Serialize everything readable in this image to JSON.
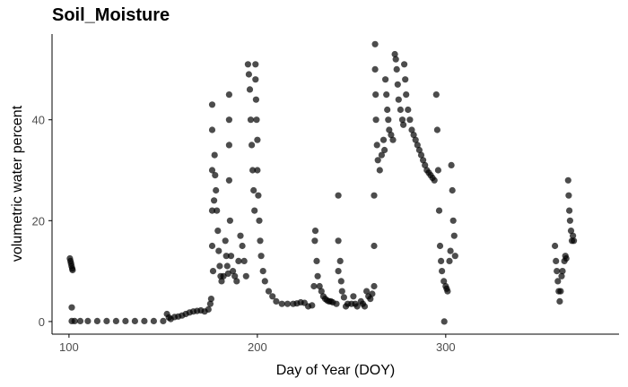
{
  "chart_data": {
    "type": "scatter",
    "title": "Soil_Moisture",
    "xlabel": "Day of Year (DOY)",
    "ylabel": "volumetric water percent",
    "xlim": [
      91,
      392
    ],
    "ylim": [
      -2.5,
      57
    ],
    "xticks": [
      100,
      200,
      300
    ],
    "yticks": [
      0,
      20,
      40
    ],
    "grid": false,
    "point_color": "#000000",
    "point_opacity": 0.7,
    "series": [
      {
        "points": [
          [
            100.5,
            12.5
          ],
          [
            100.8,
            12.0
          ],
          [
            101.1,
            11.5
          ],
          [
            101.4,
            11.0
          ],
          [
            101.7,
            10.5
          ],
          [
            101.9,
            10.2
          ],
          [
            101.5,
            2.8
          ],
          [
            101.5,
            0.1
          ],
          [
            103,
            0.1
          ],
          [
            106,
            0.1
          ],
          [
            110,
            0.1
          ],
          [
            115,
            0.1
          ],
          [
            120,
            0.1
          ],
          [
            125,
            0.1
          ],
          [
            130,
            0.1
          ],
          [
            135,
            0.1
          ],
          [
            140,
            0.1
          ],
          [
            145,
            0.1
          ],
          [
            150,
            0.1
          ],
          [
            152,
            1.5
          ],
          [
            153,
            0.8
          ],
          [
            154,
            0.5
          ],
          [
            156,
            0.9
          ],
          [
            158,
            1.0
          ],
          [
            160,
            1.2
          ],
          [
            162,
            1.5
          ],
          [
            164,
            1.8
          ],
          [
            166,
            2.0
          ],
          [
            168,
            2.1
          ],
          [
            170,
            2.2
          ],
          [
            172,
            2.0
          ],
          [
            174,
            2.4
          ],
          [
            175,
            3.5
          ],
          [
            175.5,
            4.5
          ],
          [
            176,
            43
          ],
          [
            176,
            38
          ],
          [
            176,
            30
          ],
          [
            176,
            22
          ],
          [
            176,
            15
          ],
          [
            176.5,
            10
          ],
          [
            177,
            24
          ],
          [
            177.3,
            33
          ],
          [
            177.6,
            29
          ],
          [
            178,
            26
          ],
          [
            178.5,
            22
          ],
          [
            179,
            18
          ],
          [
            179.5,
            14
          ],
          [
            180,
            11
          ],
          [
            180.5,
            9
          ],
          [
            181,
            8
          ],
          [
            182,
            9
          ],
          [
            183,
            16
          ],
          [
            183.5,
            13
          ],
          [
            184,
            11
          ],
          [
            184.5,
            9.5
          ],
          [
            185,
            45
          ],
          [
            185,
            40
          ],
          [
            185,
            35
          ],
          [
            185,
            28
          ],
          [
            185.5,
            20
          ],
          [
            186,
            13
          ],
          [
            187,
            10
          ],
          [
            188,
            9
          ],
          [
            189,
            8
          ],
          [
            190,
            12
          ],
          [
            191,
            17
          ],
          [
            192,
            15
          ],
          [
            193,
            12
          ],
          [
            194,
            9
          ],
          [
            195,
            51
          ],
          [
            195.5,
            49
          ],
          [
            196,
            46
          ],
          [
            196.5,
            40
          ],
          [
            197,
            35
          ],
          [
            197.5,
            30
          ],
          [
            198,
            26
          ],
          [
            198.5,
            22
          ],
          [
            199,
            51
          ],
          [
            199,
            48
          ],
          [
            199.3,
            44
          ],
          [
            199.6,
            40
          ],
          [
            200,
            36
          ],
          [
            200,
            30
          ],
          [
            200.5,
            25
          ],
          [
            201,
            20
          ],
          [
            201.5,
            16
          ],
          [
            202,
            13
          ],
          [
            203,
            10
          ],
          [
            204,
            8
          ],
          [
            206,
            6
          ],
          [
            208,
            5
          ],
          [
            210,
            4
          ],
          [
            213,
            3.5
          ],
          [
            216,
            3.5
          ],
          [
            219,
            3.5
          ],
          [
            221,
            3.6
          ],
          [
            223,
            3.8
          ],
          [
            225,
            3.7
          ],
          [
            227,
            3.0
          ],
          [
            229,
            3.2
          ],
          [
            230,
            7
          ],
          [
            230.5,
            16
          ],
          [
            230.8,
            18
          ],
          [
            231.5,
            12
          ],
          [
            232,
            9
          ],
          [
            233,
            7
          ],
          [
            234,
            6
          ],
          [
            235,
            5
          ],
          [
            236,
            4.5
          ],
          [
            237,
            4.2
          ],
          [
            238,
            4
          ],
          [
            239,
            4
          ],
          [
            240,
            3.8
          ],
          [
            242,
            3.5
          ],
          [
            243,
            25
          ],
          [
            243,
            16
          ],
          [
            243,
            10
          ],
          [
            244,
            12
          ],
          [
            244.5,
            8
          ],
          [
            245,
            6
          ],
          [
            246,
            4.8
          ],
          [
            247,
            3
          ],
          [
            248,
            3.5
          ],
          [
            250,
            3.5
          ],
          [
            251,
            5
          ],
          [
            252,
            3.5
          ],
          [
            253,
            3
          ],
          [
            255,
            4
          ],
          [
            256,
            3.5
          ],
          [
            257,
            3
          ],
          [
            258,
            6
          ],
          [
            259,
            5
          ],
          [
            260,
            4.5
          ],
          [
            261,
            5.5
          ],
          [
            262,
            7
          ],
          [
            262,
            15
          ],
          [
            262,
            25
          ],
          [
            262.5,
            55
          ],
          [
            262.5,
            50
          ],
          [
            262.8,
            45
          ],
          [
            263,
            40
          ],
          [
            263.5,
            35
          ],
          [
            264,
            32
          ],
          [
            265,
            30
          ],
          [
            266,
            33
          ],
          [
            267,
            36
          ],
          [
            267.5,
            34
          ],
          [
            268,
            48
          ],
          [
            268.5,
            45
          ],
          [
            269,
            42
          ],
          [
            269.5,
            40
          ],
          [
            270,
            38
          ],
          [
            271,
            37
          ],
          [
            272,
            36
          ],
          [
            273,
            53
          ],
          [
            273.5,
            52
          ],
          [
            274,
            50
          ],
          [
            274.5,
            47
          ],
          [
            275,
            44
          ],
          [
            276,
            42
          ],
          [
            277,
            40
          ],
          [
            277.5,
            39
          ],
          [
            278,
            51
          ],
          [
            278.5,
            48
          ],
          [
            279,
            45
          ],
          [
            280,
            42
          ],
          [
            281,
            40
          ],
          [
            282,
            38
          ],
          [
            283,
            37
          ],
          [
            284,
            36
          ],
          [
            285,
            35
          ],
          [
            286,
            34
          ],
          [
            287,
            33
          ],
          [
            288,
            32
          ],
          [
            289,
            31
          ],
          [
            290,
            30
          ],
          [
            291,
            29.5
          ],
          [
            292,
            29
          ],
          [
            293,
            28.5
          ],
          [
            294,
            28
          ],
          [
            295,
            45
          ],
          [
            295.5,
            38
          ],
          [
            296,
            30
          ],
          [
            296.5,
            22
          ],
          [
            297,
            15
          ],
          [
            297.5,
            12
          ],
          [
            298,
            10
          ],
          [
            299,
            8
          ],
          [
            299.2,
            0
          ],
          [
            300,
            7
          ],
          [
            300.5,
            6.5
          ],
          [
            301,
            6
          ],
          [
            302,
            12
          ],
          [
            302.5,
            14
          ],
          [
            303,
            31
          ],
          [
            303.5,
            26
          ],
          [
            304,
            20
          ],
          [
            304.5,
            17
          ],
          [
            305,
            13
          ],
          [
            358,
            15
          ],
          [
            358.5,
            12
          ],
          [
            359,
            10
          ],
          [
            359.5,
            8
          ],
          [
            360,
            6
          ],
          [
            360.5,
            4
          ],
          [
            361,
            6
          ],
          [
            361.5,
            9
          ],
          [
            362,
            10
          ],
          [
            363,
            12
          ],
          [
            363.5,
            13
          ],
          [
            364,
            12.5
          ],
          [
            365,
            28
          ],
          [
            365.3,
            25
          ],
          [
            365.6,
            22
          ],
          [
            366,
            20
          ],
          [
            366.5,
            18
          ],
          [
            367,
            16
          ],
          [
            367.5,
            17
          ],
          [
            368,
            16
          ]
        ]
      }
    ]
  }
}
